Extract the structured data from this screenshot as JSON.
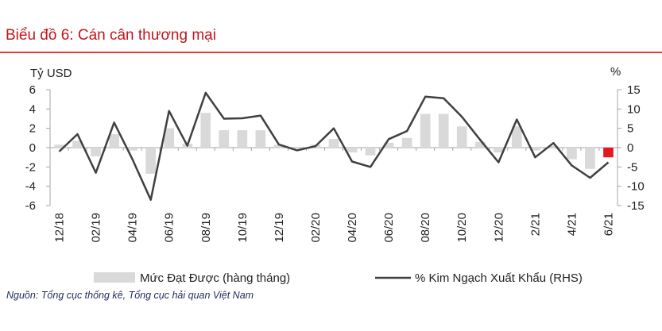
{
  "title": "Biểu đồ 6: Cán cân thương mại",
  "source": "Nguồn: Tổng cục thống kê, Tổng cục hải quan Việt Nam",
  "colors": {
    "title": "#c0161c",
    "bar": "#d9d9d9",
    "bar_highlight": "#e5171f",
    "line": "#404040",
    "axis": "#a6a6a6"
  },
  "chart_data": {
    "type": "bar+line",
    "left_axis_label": "Tỷ USD",
    "right_axis_label": "%",
    "ylim_left": [
      -6,
      6
    ],
    "ylim_right": [
      -15,
      15
    ],
    "left_ticks": [
      "6",
      "4",
      "2",
      "0",
      "-2",
      "-4",
      "-6"
    ],
    "right_ticks": [
      "15",
      "10",
      "5",
      "0",
      "-5",
      "-10",
      "-15"
    ],
    "x_tick_labels": [
      "12/18",
      "02/19",
      "04/19",
      "06/19",
      "08/19",
      "10/19",
      "12/19",
      "02/20",
      "04/20",
      "06/20",
      "08/20",
      "10/20",
      "12/20",
      "2/21",
      "4/21",
      "6/21"
    ],
    "x": [
      "12/18",
      "01/19",
      "02/19",
      "03/19",
      "04/19",
      "05/19",
      "06/19",
      "07/19",
      "08/19",
      "09/19",
      "10/19",
      "11/19",
      "12/19",
      "01/20",
      "02/20",
      "03/20",
      "04/20",
      "05/20",
      "06/20",
      "07/20",
      "08/20",
      "09/20",
      "10/20",
      "11/20",
      "12/20",
      "1/21",
      "2/21",
      "3/21",
      "4/21",
      "5/21",
      "6/21"
    ],
    "series": [
      {
        "name": "Mức Đạt Được (hàng tháng)",
        "type": "bar",
        "axis": "left",
        "values": [
          0.3,
          0.7,
          -0.9,
          1.4,
          -0.3,
          -2.7,
          2.0,
          0.4,
          3.6,
          1.8,
          1.8,
          1.8,
          0.3,
          -0.1,
          0.3,
          0.9,
          -0.5,
          -0.8,
          0.5,
          1.0,
          3.5,
          3.5,
          2.2,
          0.6,
          -0.5,
          2.2,
          -0.3,
          0.2,
          -1.2,
          -2.2,
          -1.0
        ]
      },
      {
        "name": "% Kim Ngạch Xuất Khẩu (RHS)",
        "type": "line",
        "axis": "right",
        "values": [
          -1,
          3.5,
          -6.5,
          6.5,
          -3,
          -13.5,
          9.5,
          0.5,
          14.2,
          7.5,
          7.6,
          8.3,
          0.8,
          -0.7,
          0.4,
          5,
          -3.6,
          -5,
          2.2,
          4.3,
          13.2,
          12.8,
          8,
          2,
          -3.8,
          7.3,
          -2.5,
          1.2,
          -4.6,
          -7.8,
          -3.8
        ]
      }
    ],
    "highlight_index": 30,
    "legend": {
      "position": "bottom",
      "bar_label": "Mức Đạt Được (hàng tháng)",
      "line_label": "% Kim Ngạch Xuất Khẩu (RHS)"
    }
  }
}
